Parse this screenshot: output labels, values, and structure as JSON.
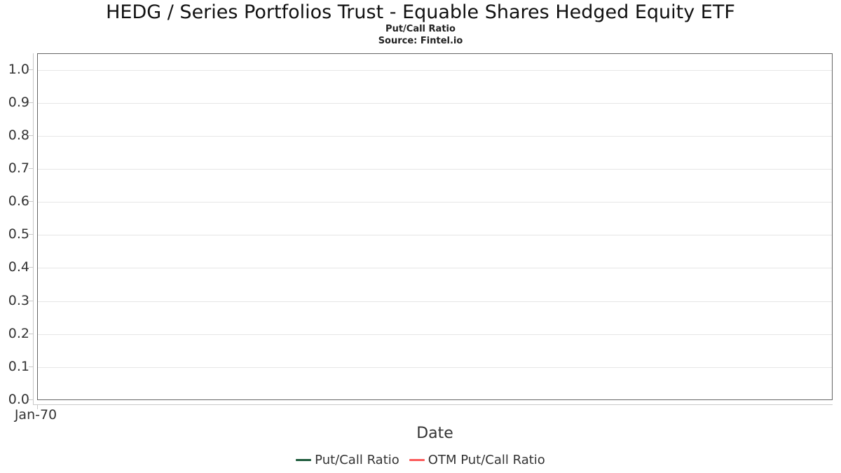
{
  "chart_data": {
    "type": "line",
    "title": "HEDG / Series Portfolios Trust - Equable Shares Hedged Equity ETF",
    "subtitle": "Put/Call Ratio",
    "source": "Source: Fintel.io",
    "xlabel": "Date",
    "ylabel": "",
    "x_ticks": [
      "Jan-70"
    ],
    "y_ticks": [
      "0.0",
      "0.1",
      "0.2",
      "0.3",
      "0.4",
      "0.5",
      "0.6",
      "0.7",
      "0.8",
      "0.9",
      "1.0"
    ],
    "ylim": [
      0,
      1.05
    ],
    "grid": "horizontal",
    "legend_position": "bottom-center",
    "series": [
      {
        "name": "Put/Call Ratio",
        "color": "#1e5b3c",
        "x": [],
        "values": []
      },
      {
        "name": "OTM Put/Call Ratio",
        "color": "#fb5a5a",
        "x": [],
        "values": []
      }
    ],
    "colors": {
      "gridline": "#e6e6e6",
      "plot_border": "#666666",
      "axis_line": "#c9c9c9",
      "tick": "#c9c9c9",
      "text": "#333333",
      "title_text": "#111111"
    }
  }
}
